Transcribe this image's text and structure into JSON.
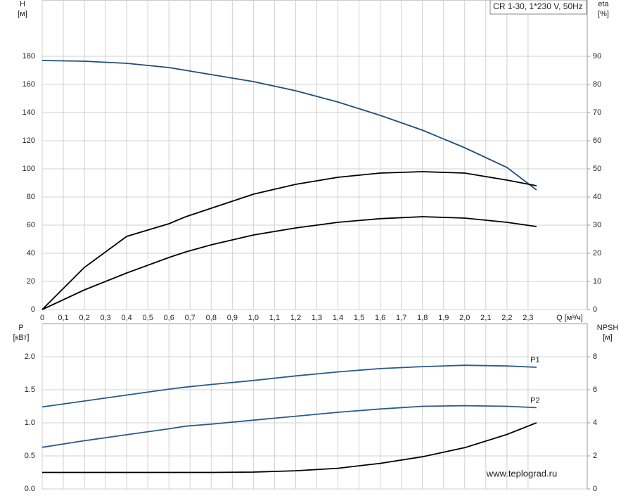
{
  "chart_data": [
    {
      "type": "line",
      "ylabel": "H",
      "yunit": "[м]",
      "y2label": "eta",
      "y2unit": "[%]",
      "xlabel": "Q [м³/ч]",
      "annotation": "CR 1-30, 1*230 V, 50Hz",
      "x": [
        0,
        0.2,
        0.4,
        0.6,
        0.68,
        0.8,
        1.0,
        1.2,
        1.4,
        1.6,
        1.8,
        2.0,
        2.2,
        2.34
      ],
      "xlim": [
        0,
        2.58
      ],
      "xticks": [
        0,
        {
          "value": 0.1,
          "label": "0,1"
        },
        {
          "value": 0.2,
          "label": "0,2"
        },
        {
          "value": 0.3,
          "label": "0,3"
        },
        {
          "value": 0.4,
          "label": "0,4"
        },
        {
          "value": 0.5,
          "label": "0,5"
        },
        {
          "value": 0.6,
          "label": "0,6"
        },
        {
          "value": 0.7,
          "label": "0,7"
        },
        {
          "value": 0.8,
          "label": "0,8"
        },
        {
          "value": 0.9,
          "label": "0,9"
        },
        {
          "value": 1.0,
          "label": "1,0"
        },
        {
          "value": 1.1,
          "label": "1,1"
        },
        {
          "value": 1.2,
          "label": "1,2"
        },
        {
          "value": 1.3,
          "label": "1,3"
        },
        {
          "value": 1.4,
          "label": "1,4"
        },
        {
          "value": 1.5,
          "label": "1,5"
        },
        {
          "value": 1.6,
          "label": "1,6"
        },
        {
          "value": 1.7,
          "label": "1,7"
        },
        {
          "value": 1.8,
          "label": "1,8"
        },
        {
          "value": 1.9,
          "label": "1,9"
        },
        {
          "value": 2.0,
          "label": "2,0"
        },
        {
          "value": 2.1,
          "label": "2,1"
        },
        {
          "value": 2.2,
          "label": "2,2"
        },
        {
          "value": 2.3,
          "label": "2,3"
        }
      ],
      "ylim": [
        0,
        220
      ],
      "yticks": [
        0,
        20,
        40,
        60,
        80,
        100,
        120,
        140,
        160,
        180
      ],
      "y2lim": [
        0,
        110
      ],
      "y2ticks": [
        0,
        10,
        20,
        30,
        40,
        50,
        60,
        70,
        80,
        90
      ],
      "grid": true,
      "series": [
        {
          "color": "#1f4e79",
          "values": [
            177,
            176.5,
            175,
            172,
            170,
            167,
            162,
            155.5,
            147.5,
            138,
            127.5,
            115,
            101,
            85
          ]
        },
        {
          "color": "#000000",
          "axis": "y2",
          "values": [
            0,
            15,
            26,
            30.5,
            33,
            36,
            41,
            44.5,
            47,
            48.5,
            49,
            48.5,
            46,
            44
          ]
        },
        {
          "color": "#000000",
          "axis": "y2",
          "values": [
            0,
            7,
            13,
            18.5,
            20.5,
            23,
            26.5,
            29,
            31,
            32.3,
            33,
            32.5,
            31,
            29.5
          ]
        }
      ]
    },
    {
      "type": "line",
      "ylabel": "P",
      "yunit": "[кВт]",
      "y2label": "NPSH",
      "y2unit": "[м]",
      "annotation": "www.teplograd.ru",
      "x": [
        0,
        0.2,
        0.4,
        0.6,
        0.68,
        0.8,
        1.0,
        1.2,
        1.4,
        1.6,
        1.8,
        2.0,
        2.2,
        2.34
      ],
      "xlim": [
        0,
        2.58
      ],
      "xticks": [
        0,
        0.1,
        0.2,
        0.3,
        0.4,
        0.5,
        0.6,
        0.7,
        0.8,
        0.9,
        1,
        1.1,
        1.2,
        1.3,
        1.4,
        1.5,
        1.6,
        1.7,
        1.8,
        1.9,
        2,
        2.1,
        2.2,
        2.3
      ],
      "xtick_labels": false,
      "ylim": [
        0,
        2.5
      ],
      "yticks": [
        {
          "value": 0,
          "label": "0.0"
        },
        0.5,
        {
          "value": 1,
          "label": "1.0"
        },
        1.5,
        {
          "value": 2,
          "label": "2.0"
        }
      ],
      "y2lim": [
        0,
        10
      ],
      "y2ticks": [
        0,
        2,
        4,
        6,
        8
      ],
      "grid": true,
      "series": [
        {
          "name": "P1",
          "color": "#2a5a8a",
          "values": [
            1.24,
            1.33,
            1.42,
            1.51,
            1.54,
            1.58,
            1.64,
            1.71,
            1.77,
            1.82,
            1.85,
            1.87,
            1.86,
            1.84
          ]
        },
        {
          "name": "P2",
          "color": "#2a5a8a",
          "values": [
            0.63,
            0.73,
            0.82,
            0.91,
            0.95,
            0.98,
            1.04,
            1.1,
            1.16,
            1.21,
            1.25,
            1.26,
            1.25,
            1.23
          ]
        },
        {
          "color": "#000000",
          "axis": "y2",
          "values": [
            1.0,
            1.0,
            1.0,
            1.0,
            1.0,
            1.0,
            1.02,
            1.1,
            1.25,
            1.55,
            1.95,
            2.5,
            3.3,
            4.0
          ]
        }
      ]
    }
  ]
}
